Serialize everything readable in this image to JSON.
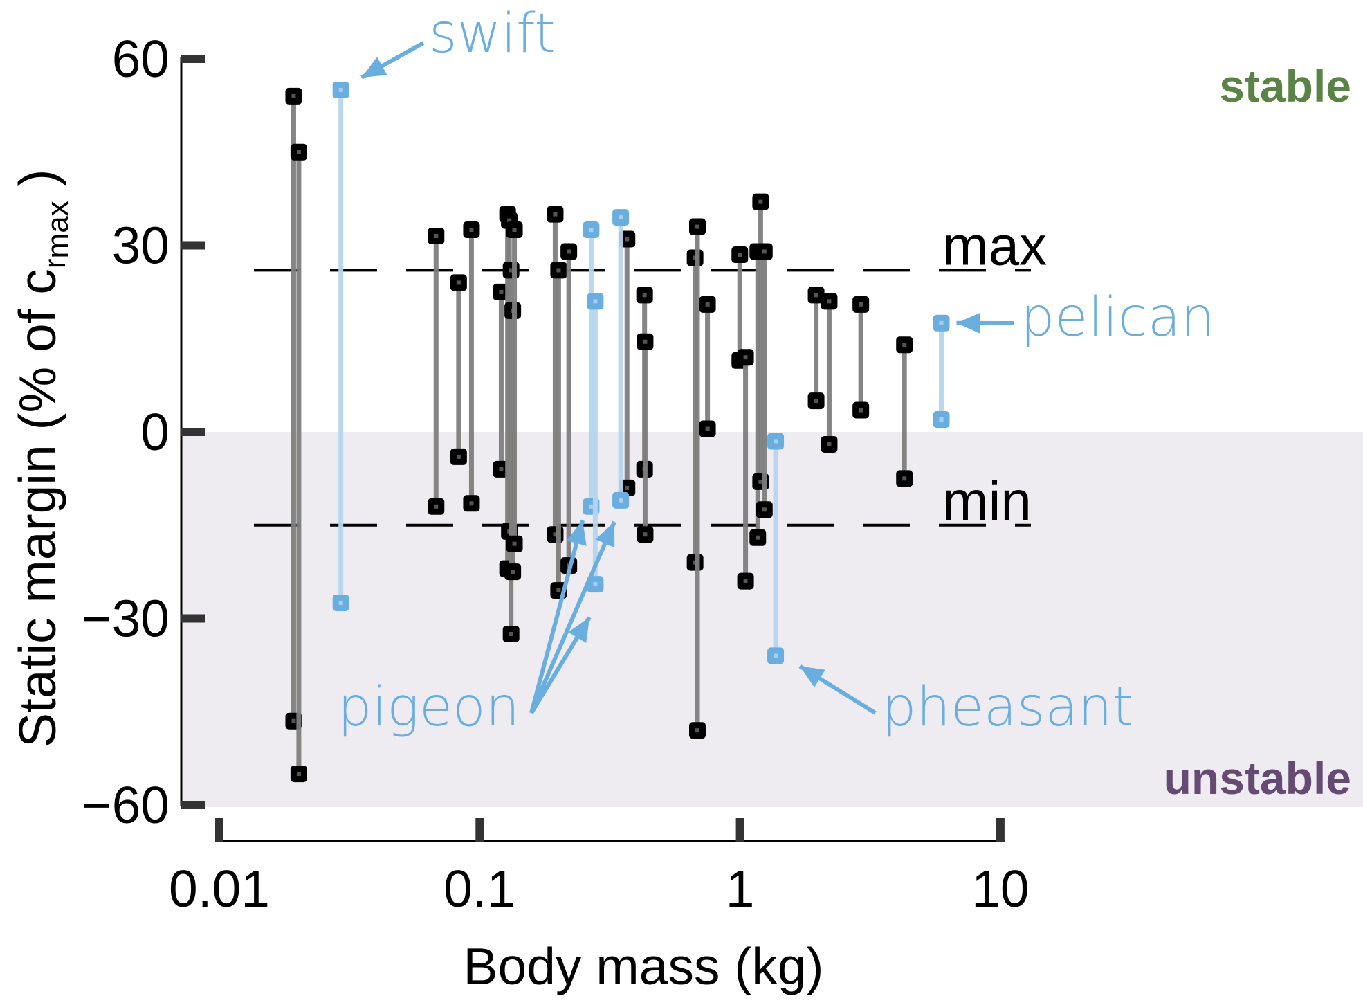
{
  "chart_data": {
    "type": "range-scatter",
    "title": "",
    "xlabel": "Body mass (kg)",
    "ylabel": {
      "main": "Static margin (% of c",
      "sub_base": "r",
      "sub_sub": "max",
      "close": " )"
    },
    "xscale": "log",
    "xlim": [
      0.01,
      10
    ],
    "ylim": [
      -60,
      60
    ],
    "xticks": [
      {
        "value": 0.01,
        "label": "0.01"
      },
      {
        "value": 0.1,
        "label": "0.1"
      },
      {
        "value": 1,
        "label": "1"
      },
      {
        "value": 10,
        "label": "10"
      }
    ],
    "yticks": [
      {
        "value": 60,
        "label": "60"
      },
      {
        "value": 30,
        "label": "30"
      },
      {
        "value": 0,
        "label": "0"
      },
      {
        "value": -30,
        "label": "−30"
      },
      {
        "value": -60,
        "label": "−60"
      }
    ],
    "reference_lines": [
      {
        "name": "max",
        "label": "max",
        "y": 26,
        "style": "dashed"
      },
      {
        "name": "min",
        "label": "min",
        "y": -15,
        "style": "dashed"
      }
    ],
    "regions": [
      {
        "name": "stable",
        "label": "stable",
        "color": "#5a8446",
        "from": 0,
        "to": 60
      },
      {
        "name": "unstable",
        "label": "unstable",
        "color": "#654b74",
        "from": -60,
        "to": 0,
        "fill": "#eeecf1"
      }
    ],
    "colors": {
      "default": "#000000",
      "default_line": "#7f7f7f",
      "highlight": "#6aaee0",
      "highlight_line": "#b6d6ee"
    },
    "series": [
      {
        "mass": 0.0193,
        "max": 54,
        "min": -46.5,
        "highlight": false
      },
      {
        "mass": 0.0202,
        "max": 45,
        "min": -55,
        "highlight": false
      },
      {
        "mass": 0.0293,
        "max": 55,
        "min": -27.5,
        "highlight": true,
        "species": "swift"
      },
      {
        "mass": 0.068,
        "max": 31.5,
        "min": -12,
        "highlight": false
      },
      {
        "mass": 0.083,
        "max": 24,
        "min": -4,
        "highlight": false
      },
      {
        "mass": 0.093,
        "max": 32.5,
        "min": -11.5,
        "highlight": false
      },
      {
        "mass": 0.121,
        "max": 22.5,
        "min": -6,
        "highlight": false
      },
      {
        "mass": 0.128,
        "max": 35,
        "min": -22,
        "highlight": false
      },
      {
        "mass": 0.13,
        "max": 34,
        "min": -16,
        "highlight": false
      },
      {
        "mass": 0.132,
        "max": 26,
        "min": -32.5,
        "highlight": false
      },
      {
        "mass": 0.134,
        "max": 19.5,
        "min": -22.5,
        "highlight": false
      },
      {
        "mass": 0.136,
        "max": 32.5,
        "min": -18,
        "highlight": false
      },
      {
        "mass": 0.195,
        "max": 35,
        "min": -16.5,
        "highlight": false
      },
      {
        "mass": 0.201,
        "max": 26,
        "min": -25.5,
        "highlight": false
      },
      {
        "mass": 0.22,
        "max": 29,
        "min": -21.5,
        "highlight": false
      },
      {
        "mass": 0.268,
        "max": 32.5,
        "min": -12,
        "highlight": true,
        "species": "pigeon"
      },
      {
        "mass": 0.278,
        "max": 21,
        "min": -24.5,
        "highlight": true,
        "species": "pigeon"
      },
      {
        "mass": 0.348,
        "max": 34.5,
        "min": -11,
        "highlight": true,
        "species": "pigeon"
      },
      {
        "mass": 0.368,
        "max": 31,
        "min": -9,
        "highlight": false
      },
      {
        "mass": 0.43,
        "max": 22,
        "min": -6,
        "highlight": false
      },
      {
        "mass": 0.432,
        "max": 14.5,
        "min": -16.5,
        "highlight": false
      },
      {
        "mass": 0.672,
        "max": 28,
        "min": -21,
        "highlight": false
      },
      {
        "mass": 0.686,
        "max": 33,
        "min": -48,
        "highlight": false
      },
      {
        "mass": 0.75,
        "max": 20.5,
        "min": 0.5,
        "highlight": false
      },
      {
        "mass": 0.998,
        "max": 28.5,
        "min": 11.5,
        "highlight": false
      },
      {
        "mass": 1.05,
        "max": 12,
        "min": -24,
        "highlight": false
      },
      {
        "mass": 1.17,
        "max": 29,
        "min": -17,
        "highlight": false
      },
      {
        "mass": 1.2,
        "max": 37,
        "min": -8,
        "highlight": false
      },
      {
        "mass": 1.24,
        "max": 29,
        "min": -12.5,
        "highlight": false
      },
      {
        "mass": 1.37,
        "max": -1.5,
        "min": -36,
        "highlight": true,
        "species": "pheasant"
      },
      {
        "mass": 1.96,
        "max": 22,
        "min": 5,
        "highlight": false
      },
      {
        "mass": 2.2,
        "max": 21,
        "min": -2,
        "highlight": false
      },
      {
        "mass": 2.91,
        "max": 20.5,
        "min": 3.5,
        "highlight": false
      },
      {
        "mass": 4.28,
        "max": 14,
        "min": -7.5,
        "highlight": false
      },
      {
        "mass": 5.93,
        "max": 17.5,
        "min": 2,
        "highlight": true,
        "species": "pelican"
      }
    ],
    "annotations": [
      {
        "name": "swift",
        "label": "swift"
      },
      {
        "name": "pigeon",
        "label": "pigeon"
      },
      {
        "name": "pheasant",
        "label": "pheasant"
      },
      {
        "name": "pelican",
        "label": "pelican"
      }
    ],
    "grid": false,
    "legend": "none"
  }
}
